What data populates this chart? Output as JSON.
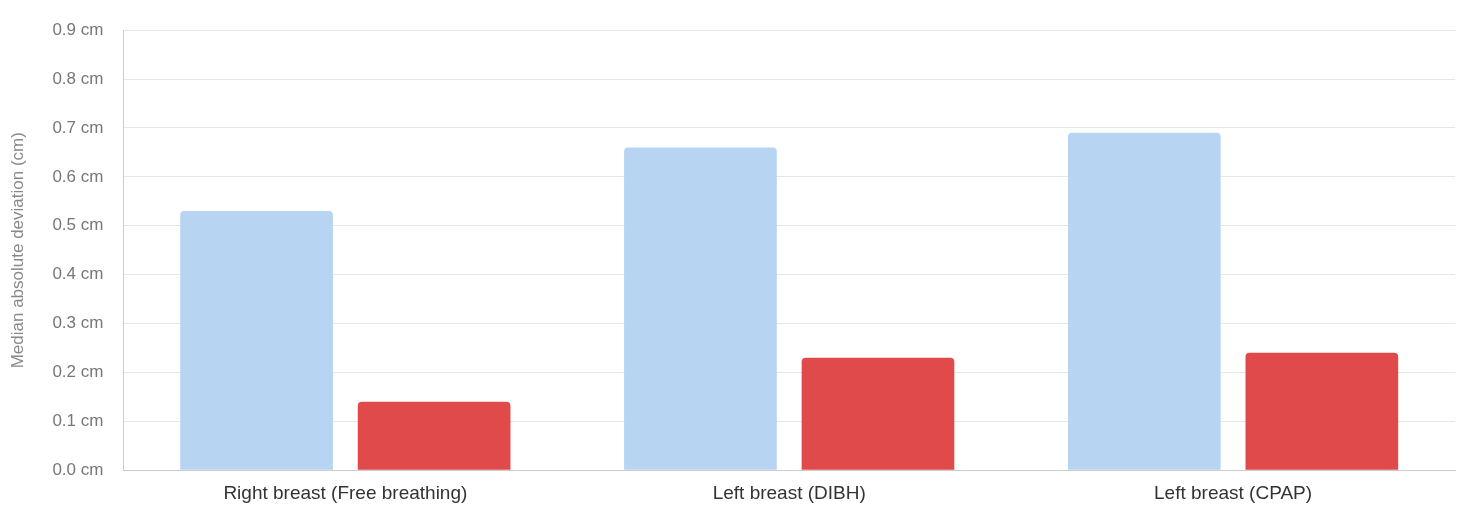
{
  "chart_data": {
    "type": "bar",
    "ylabel": "Median absolute deviation (cm)",
    "categories": [
      "Right breast (Free breathing)",
      "Left breast (DIBH)",
      "Left breast (CPAP)"
    ],
    "series": [
      {
        "color": "#b7d4f2",
        "values": [
          0.53,
          0.66,
          0.69
        ]
      },
      {
        "color": "#e04a4a",
        "values": [
          0.14,
          0.23,
          0.24
        ]
      }
    ],
    "ylim": [
      0,
      0.9
    ],
    "yticks": [
      {
        "value": 0,
        "label": "0.0 cm"
      },
      {
        "value": 0.1,
        "label": "0.1 cm"
      },
      {
        "value": 0.2,
        "label": "0.2 cm"
      },
      {
        "value": 0.3,
        "label": "0.3 cm"
      },
      {
        "value": 0.4,
        "label": "0.4 cm"
      },
      {
        "value": 0.5,
        "label": "0.5 cm"
      },
      {
        "value": 0.6,
        "label": "0.6 cm"
      },
      {
        "value": 0.7,
        "label": "0.7 cm"
      },
      {
        "value": 0.8,
        "label": "0.8 cm"
      },
      {
        "value": 0.9,
        "label": "0.9 cm"
      }
    ],
    "grid": "y",
    "legend": false
  }
}
